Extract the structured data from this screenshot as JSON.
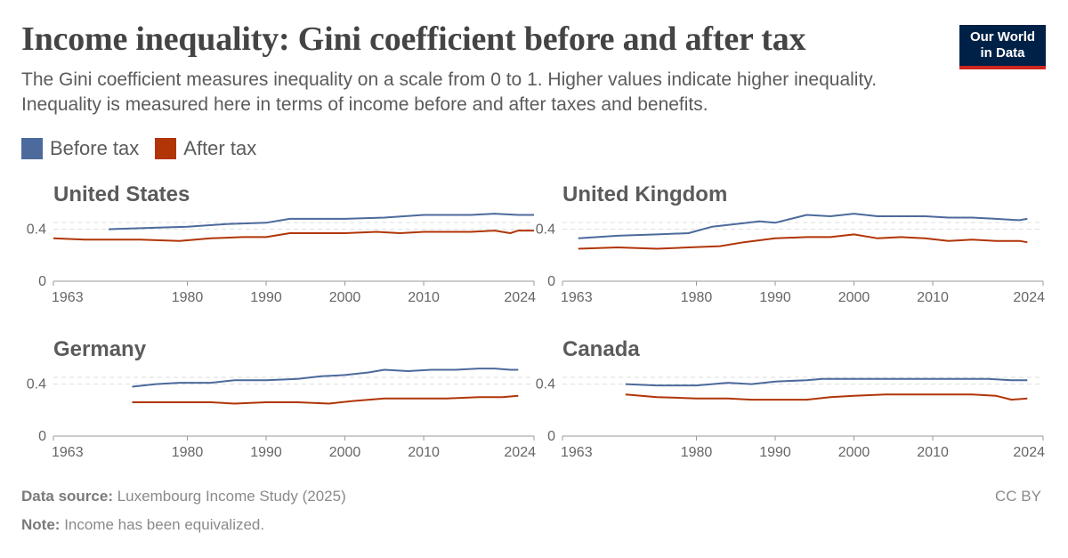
{
  "header": {
    "title": "Income inequality: Gini coefficient before and after tax",
    "subtitle": "The Gini coefficient measures inequality on a scale from 0 to 1. Higher values indicate higher inequality. Inequality is measured here in terms of income before and after taxes and benefits.",
    "logo_line1": "Our World",
    "logo_line2": "in Data"
  },
  "legend": [
    {
      "label": "Before tax",
      "color": "#4c6a9c"
    },
    {
      "label": "After tax",
      "color": "#b13507"
    }
  ],
  "footer": {
    "source_label": "Data source:",
    "source_text": "Luxembourg Income Study (2025)",
    "note_label": "Note:",
    "note_text": "Income has been equivalized.",
    "license": "CC BY"
  },
  "chart_data": [
    {
      "type": "line",
      "title": "United States",
      "xlim": [
        1963,
        2024
      ],
      "ylim": [
        0,
        0.5
      ],
      "x_ticks": [
        1963,
        1980,
        1990,
        2000,
        2010,
        2024
      ],
      "y_ticks": [
        {
          "value": 0,
          "label": "0"
        },
        {
          "value": 0.4,
          "label": "0.4"
        }
      ],
      "series": [
        {
          "name": "Before tax",
          "color": "#4c6a9c",
          "points": [
            [
              1970,
              0.4
            ],
            [
              1975,
              0.41
            ],
            [
              1980,
              0.42
            ],
            [
              1985,
              0.44
            ],
            [
              1990,
              0.45
            ],
            [
              1993,
              0.48
            ],
            [
              1997,
              0.48
            ],
            [
              2000,
              0.48
            ],
            [
              2005,
              0.49
            ],
            [
              2010,
              0.51
            ],
            [
              2013,
              0.51
            ],
            [
              2016,
              0.51
            ],
            [
              2019,
              0.52
            ],
            [
              2022,
              0.51
            ],
            [
              2024,
              0.51
            ]
          ]
        },
        {
          "name": "After tax",
          "color": "#b13507",
          "points": [
            [
              1963,
              0.33
            ],
            [
              1967,
              0.32
            ],
            [
              1970,
              0.32
            ],
            [
              1974,
              0.32
            ],
            [
              1979,
              0.31
            ],
            [
              1983,
              0.33
            ],
            [
              1987,
              0.34
            ],
            [
              1990,
              0.34
            ],
            [
              1993,
              0.37
            ],
            [
              1997,
              0.37
            ],
            [
              2000,
              0.37
            ],
            [
              2004,
              0.38
            ],
            [
              2007,
              0.37
            ],
            [
              2010,
              0.38
            ],
            [
              2013,
              0.38
            ],
            [
              2016,
              0.38
            ],
            [
              2019,
              0.39
            ],
            [
              2021,
              0.37
            ],
            [
              2022,
              0.39
            ],
            [
              2024,
              0.39
            ]
          ]
        }
      ]
    },
    {
      "type": "line",
      "title": "United Kingdom",
      "xlim": [
        1963,
        2024
      ],
      "ylim": [
        0,
        0.5
      ],
      "x_ticks": [
        1963,
        1980,
        1990,
        2000,
        2010,
        2024
      ],
      "y_ticks": [
        {
          "value": 0,
          "label": "0"
        },
        {
          "value": 0.4,
          "label": "0.4"
        }
      ],
      "series": [
        {
          "name": "Before tax",
          "color": "#4c6a9c",
          "points": [
            [
              1965,
              0.33
            ],
            [
              1970,
              0.35
            ],
            [
              1975,
              0.36
            ],
            [
              1979,
              0.37
            ],
            [
              1982,
              0.42
            ],
            [
              1985,
              0.44
            ],
            [
              1988,
              0.46
            ],
            [
              1990,
              0.45
            ],
            [
              1994,
              0.51
            ],
            [
              1997,
              0.5
            ],
            [
              2000,
              0.52
            ],
            [
              2003,
              0.5
            ],
            [
              2006,
              0.5
            ],
            [
              2009,
              0.5
            ],
            [
              2012,
              0.49
            ],
            [
              2015,
              0.49
            ],
            [
              2018,
              0.48
            ],
            [
              2021,
              0.47
            ],
            [
              2022,
              0.48
            ]
          ]
        },
        {
          "name": "After tax",
          "color": "#b13507",
          "points": [
            [
              1965,
              0.25
            ],
            [
              1970,
              0.26
            ],
            [
              1975,
              0.25
            ],
            [
              1979,
              0.26
            ],
            [
              1983,
              0.27
            ],
            [
              1986,
              0.3
            ],
            [
              1990,
              0.33
            ],
            [
              1994,
              0.34
            ],
            [
              1997,
              0.34
            ],
            [
              2000,
              0.36
            ],
            [
              2003,
              0.33
            ],
            [
              2006,
              0.34
            ],
            [
              2009,
              0.33
            ],
            [
              2012,
              0.31
            ],
            [
              2015,
              0.32
            ],
            [
              2018,
              0.31
            ],
            [
              2021,
              0.31
            ],
            [
              2022,
              0.3
            ]
          ]
        }
      ]
    },
    {
      "type": "line",
      "title": "Germany",
      "xlim": [
        1963,
        2024
      ],
      "ylim": [
        0,
        0.5
      ],
      "x_ticks": [
        1963,
        1980,
        1990,
        2000,
        2010,
        2024
      ],
      "y_ticks": [
        {
          "value": 0,
          "label": "0"
        },
        {
          "value": 0.4,
          "label": "0.4"
        }
      ],
      "series": [
        {
          "name": "Before tax",
          "color": "#4c6a9c",
          "points": [
            [
              1973,
              0.38
            ],
            [
              1976,
              0.4
            ],
            [
              1979,
              0.41
            ],
            [
              1983,
              0.41
            ],
            [
              1986,
              0.43
            ],
            [
              1990,
              0.43
            ],
            [
              1994,
              0.44
            ],
            [
              1997,
              0.46
            ],
            [
              2000,
              0.47
            ],
            [
              2003,
              0.49
            ],
            [
              2005,
              0.51
            ],
            [
              2008,
              0.5
            ],
            [
              2011,
              0.51
            ],
            [
              2014,
              0.51
            ],
            [
              2017,
              0.52
            ],
            [
              2019,
              0.52
            ],
            [
              2021,
              0.51
            ],
            [
              2022,
              0.51
            ]
          ]
        },
        {
          "name": "After tax",
          "color": "#b13507",
          "points": [
            [
              1973,
              0.26
            ],
            [
              1978,
              0.26
            ],
            [
              1983,
              0.26
            ],
            [
              1986,
              0.25
            ],
            [
              1990,
              0.26
            ],
            [
              1994,
              0.26
            ],
            [
              1998,
              0.25
            ],
            [
              2001,
              0.27
            ],
            [
              2005,
              0.29
            ],
            [
              2009,
              0.29
            ],
            [
              2013,
              0.29
            ],
            [
              2017,
              0.3
            ],
            [
              2020,
              0.3
            ],
            [
              2022,
              0.31
            ]
          ]
        }
      ]
    },
    {
      "type": "line",
      "title": "Canada",
      "xlim": [
        1963,
        2024
      ],
      "ylim": [
        0,
        0.5
      ],
      "x_ticks": [
        1963,
        1980,
        1990,
        2000,
        2010,
        2024
      ],
      "y_ticks": [
        {
          "value": 0,
          "label": "0"
        },
        {
          "value": 0.4,
          "label": "0.4"
        }
      ],
      "series": [
        {
          "name": "Before tax",
          "color": "#4c6a9c",
          "points": [
            [
              1971,
              0.4
            ],
            [
              1975,
              0.39
            ],
            [
              1980,
              0.39
            ],
            [
              1984,
              0.41
            ],
            [
              1987,
              0.4
            ],
            [
              1990,
              0.42
            ],
            [
              1994,
              0.43
            ],
            [
              1996,
              0.44
            ],
            [
              1999,
              0.44
            ],
            [
              2002,
              0.44
            ],
            [
              2006,
              0.44
            ],
            [
              2010,
              0.44
            ],
            [
              2014,
              0.44
            ],
            [
              2017,
              0.44
            ],
            [
              2020,
              0.43
            ],
            [
              2022,
              0.43
            ]
          ]
        },
        {
          "name": "After tax",
          "color": "#b13507",
          "points": [
            [
              1971,
              0.32
            ],
            [
              1975,
              0.3
            ],
            [
              1980,
              0.29
            ],
            [
              1984,
              0.29
            ],
            [
              1987,
              0.28
            ],
            [
              1990,
              0.28
            ],
            [
              1994,
              0.28
            ],
            [
              1997,
              0.3
            ],
            [
              2000,
              0.31
            ],
            [
              2004,
              0.32
            ],
            [
              2008,
              0.32
            ],
            [
              2012,
              0.32
            ],
            [
              2015,
              0.32
            ],
            [
              2018,
              0.31
            ],
            [
              2020,
              0.28
            ],
            [
              2022,
              0.29
            ]
          ]
        }
      ]
    }
  ]
}
